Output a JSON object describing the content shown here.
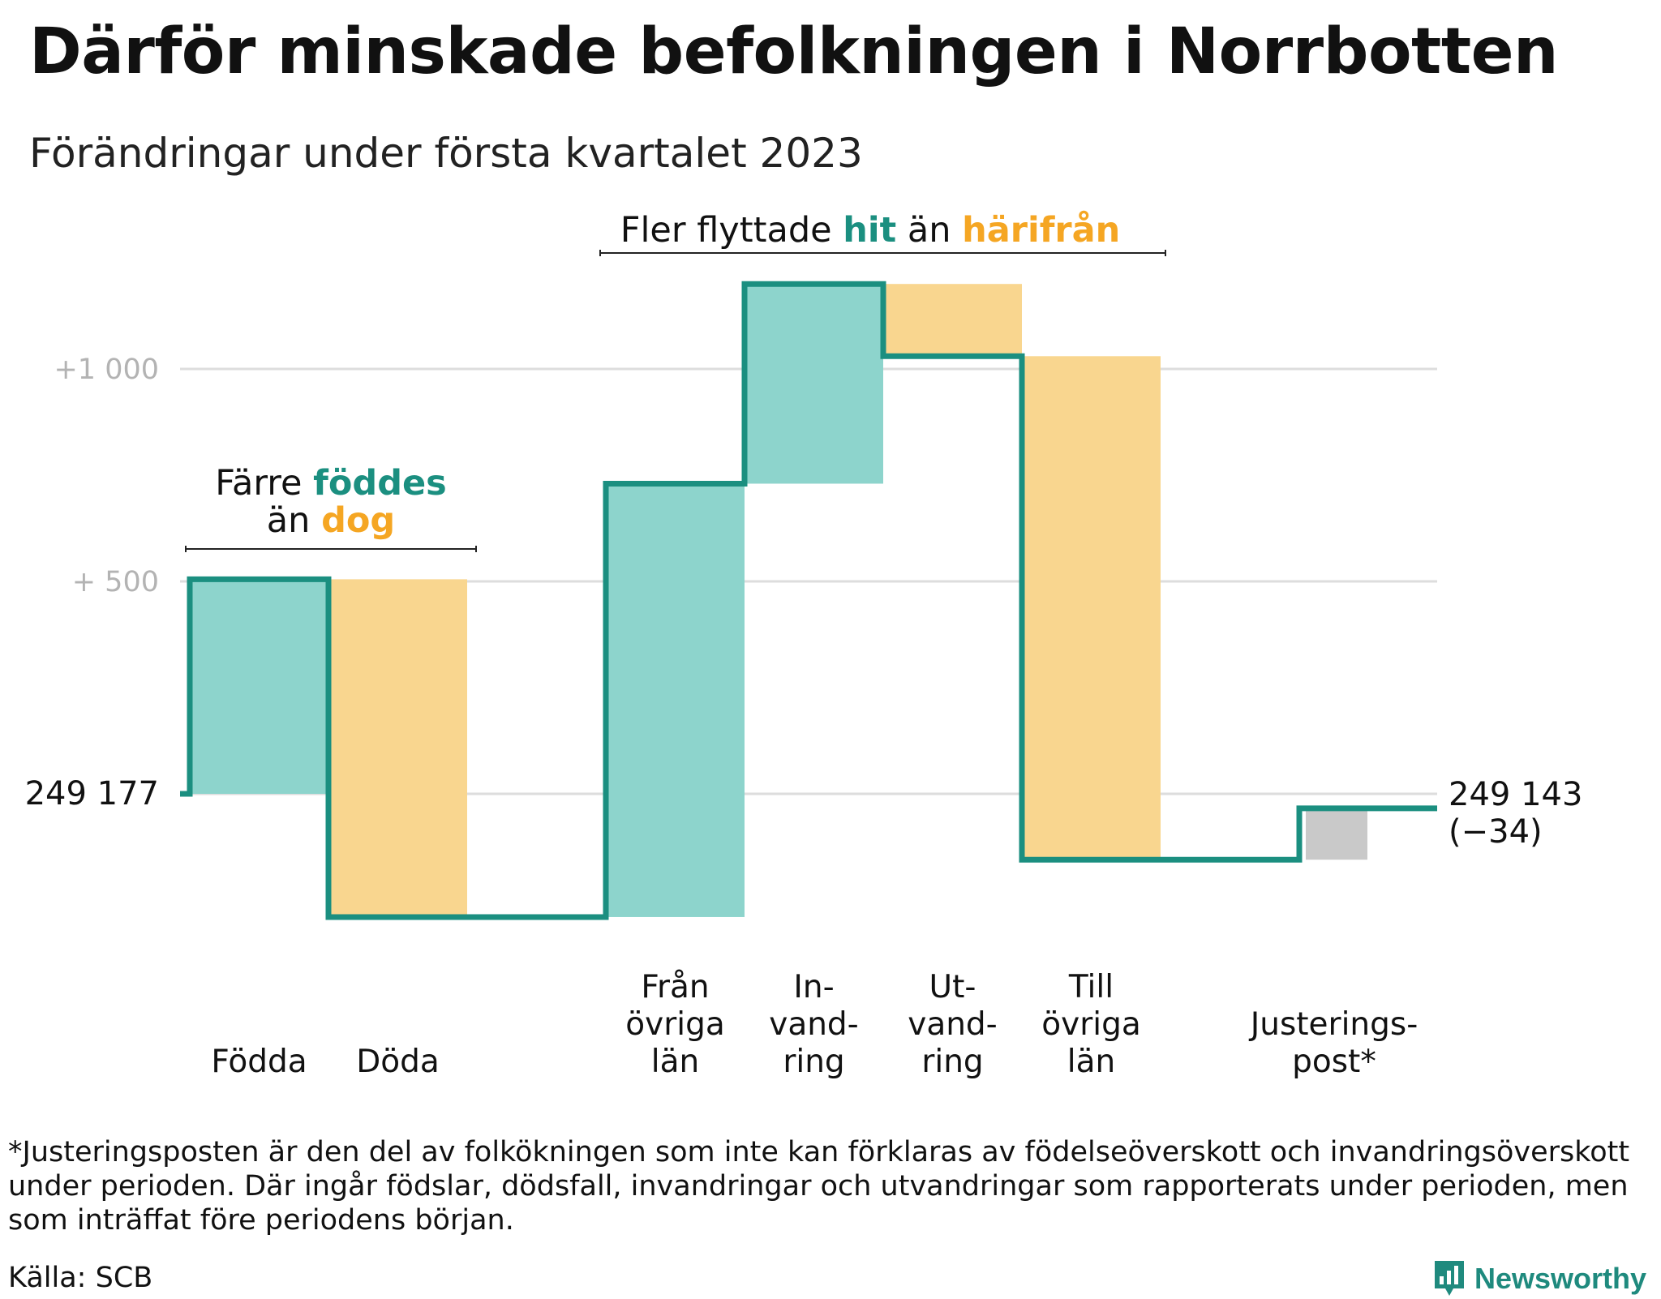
{
  "title": "Därför minskade befolkningen i Norrbotten",
  "subtitle": "Förändringar under första kvartalet 2023",
  "chart_data": {
    "type": "waterfall",
    "start_value": 249177,
    "start_label": "249 177",
    "end_value": 249143,
    "end_label": "249 143",
    "end_change_label": "(−34)",
    "y_ticks": [
      {
        "value": 500,
        "label": "+ 500"
      },
      {
        "value": 1000,
        "label": "+1 000"
      }
    ],
    "y_range_relative": [
      -320,
      1280
    ],
    "steps": [
      {
        "label_lines": [
          "Födda"
        ],
        "delta": 505,
        "kind": "positive"
      },
      {
        "label_lines": [
          "Döda"
        ],
        "delta": -795,
        "kind": "negative"
      },
      {
        "label_lines": [],
        "delta": 0,
        "kind": "gap"
      },
      {
        "label_lines": [
          "Från",
          "övriga",
          "län"
        ],
        "delta": 1020,
        "kind": "positive"
      },
      {
        "label_lines": [
          "In-",
          "vand-",
          "ring"
        ],
        "delta": 470,
        "kind": "positive"
      },
      {
        "label_lines": [
          "Ut-",
          "vand-",
          "ring"
        ],
        "delta": -170,
        "kind": "negative"
      },
      {
        "label_lines": [
          "Till",
          "övriga",
          "län"
        ],
        "delta": -1185,
        "kind": "negative"
      },
      {
        "label_lines": [],
        "delta": 0,
        "kind": "gap"
      },
      {
        "label_lines": [
          "Justerings-",
          "post*"
        ],
        "delta": 121,
        "kind": "adjustment"
      }
    ],
    "annotations": [
      {
        "text_parts": [
          {
            "text": "Färre ",
            "style": "plain"
          },
          {
            "text": "föddes",
            "style": "teal"
          },
          {
            "text": "än ",
            "style": "plain",
            "newline": true
          },
          {
            "text": "dog",
            "style": "orange"
          }
        ],
        "spans": "Födda–Döda"
      },
      {
        "text_parts": [
          {
            "text": "Fler flyttade ",
            "style": "plain"
          },
          {
            "text": "hit",
            "style": "teal"
          },
          {
            "text": " än ",
            "style": "plain"
          },
          {
            "text": "härifrån",
            "style": "orange"
          }
        ],
        "spans": "Från övriga län–Till övriga län"
      }
    ],
    "grid": true
  },
  "colors": {
    "line": "#1b8f80",
    "positive_fill": "#8dd4cc",
    "negative_fill": "#f9d68f",
    "adjustment_fill": "#c9c9c9",
    "grid": "#dddddd",
    "tick_text": "#b3b3b3",
    "teal_text": "#1b8f80",
    "orange_text": "#f5a623"
  },
  "footnote": "*Justeringsposten är den del av folkökningen som inte kan förklaras av födelseöverskott och invandringsöverskott under perioden. Där ingår födslar, dödsfall, invandringar och utvandringar som rapporterats under perioden, men som inträffat före periodens början.",
  "source": "Källa: SCB",
  "brand": {
    "name": "Newsworthy",
    "icon": "newsworthy-chart-icon"
  }
}
